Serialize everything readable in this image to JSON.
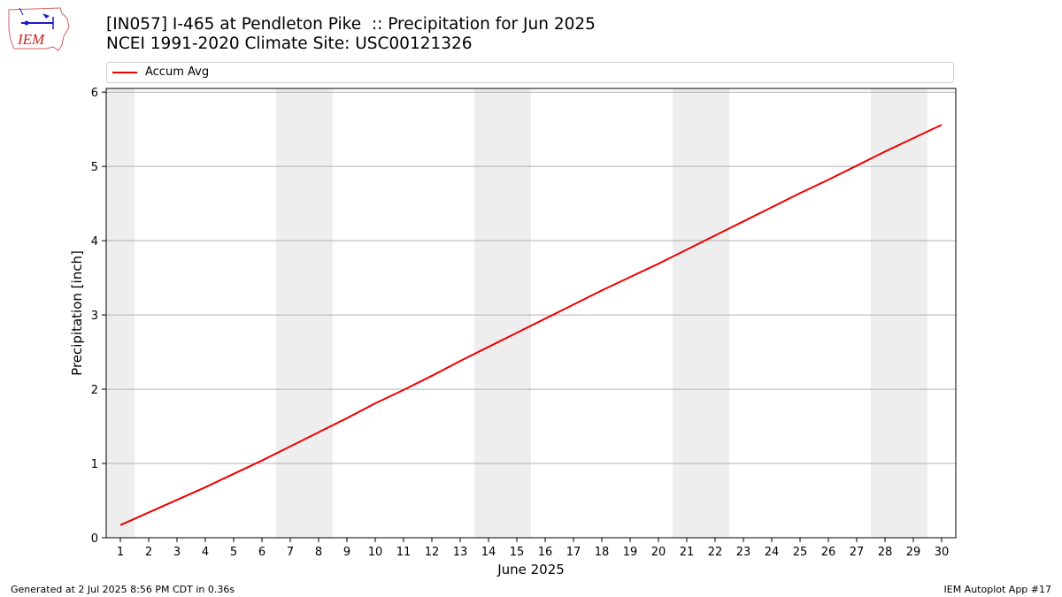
{
  "header": {
    "title_line1": "[IN057] I-465 at Pendleton Pike  :: Precipitation for Jun 2025",
    "title_line2": "NCEI 1991-2020 Climate Site: USC00121326",
    "logo_text": "IEM"
  },
  "footer": {
    "left": "Generated at 2 Jul 2025 8:56 PM CDT in 0.36s",
    "right": "IEM Autoplot App #17"
  },
  "colors": {
    "line": "#ee0000",
    "weekend_band": "#eeeeee",
    "grid": "#b0b0b0"
  },
  "chart_data": {
    "type": "line",
    "xlabel": "June 2025",
    "ylabel": "Precipitation [inch]",
    "xlim": [
      0.5,
      30.5
    ],
    "ylim": [
      0,
      6.05
    ],
    "x_ticks": [
      1,
      2,
      3,
      4,
      5,
      6,
      7,
      8,
      9,
      10,
      11,
      12,
      13,
      14,
      15,
      16,
      17,
      18,
      19,
      20,
      21,
      22,
      23,
      24,
      25,
      26,
      27,
      28,
      29,
      30
    ],
    "y_ticks": [
      0,
      1,
      2,
      3,
      4,
      5,
      6
    ],
    "grid": "horizontal",
    "legend_position": "top",
    "weekend_days": [
      1,
      7,
      8,
      14,
      15,
      21,
      22,
      28,
      29
    ],
    "series": [
      {
        "name": "Accum Avg",
        "x": [
          1,
          2,
          3,
          4,
          5,
          6,
          7,
          8,
          9,
          10,
          11,
          12,
          13,
          14,
          15,
          16,
          17,
          18,
          19,
          20,
          21,
          22,
          23,
          24,
          25,
          26,
          27,
          28,
          29,
          30
        ],
        "y": [
          0.17,
          0.34,
          0.51,
          0.68,
          0.86,
          1.04,
          1.23,
          1.42,
          1.61,
          1.81,
          1.99,
          2.18,
          2.38,
          2.57,
          2.76,
          2.95,
          3.14,
          3.33,
          3.51,
          3.69,
          3.88,
          4.07,
          4.26,
          4.45,
          4.64,
          4.82,
          5.01,
          5.2,
          5.38,
          5.56
        ]
      }
    ]
  }
}
